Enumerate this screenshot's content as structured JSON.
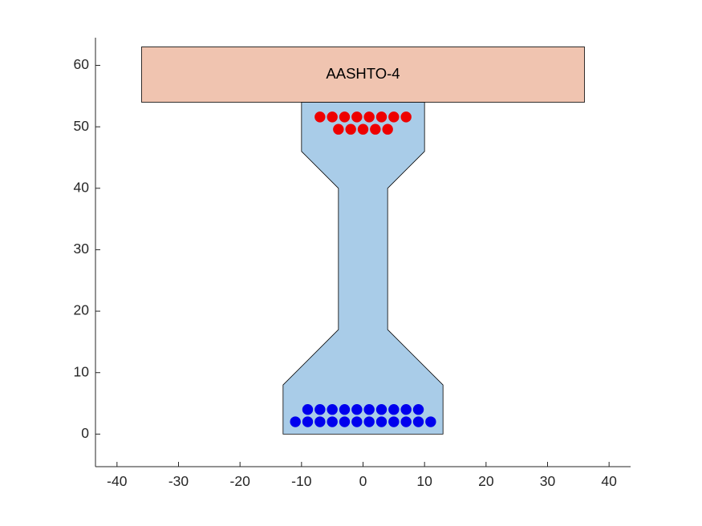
{
  "chart_data": {
    "type": "scatter",
    "title": "",
    "xlabel": "",
    "ylabel": "",
    "xlim": [
      -43.5,
      43.5
    ],
    "ylim": [
      -5.3,
      64.5
    ],
    "x_ticks": [
      -40,
      -30,
      -20,
      -10,
      0,
      10,
      20,
      30,
      40
    ],
    "y_ticks": [
      0,
      10,
      20,
      30,
      40,
      50,
      60
    ],
    "grid": false,
    "slab": {
      "label": "AASHTO-4",
      "x": [
        -36,
        36
      ],
      "y": [
        54,
        63
      ],
      "fill": "#f0c4b0"
    },
    "girder": {
      "fill": "#a9cce8",
      "outline": [
        [
          -13,
          0
        ],
        [
          13,
          0
        ],
        [
          13,
          8
        ],
        [
          4,
          17
        ],
        [
          4,
          40
        ],
        [
          10,
          46
        ],
        [
          10,
          54
        ],
        [
          -10,
          54
        ],
        [
          -10,
          46
        ],
        [
          -4,
          40
        ],
        [
          -4,
          17
        ],
        [
          -13,
          8
        ]
      ]
    },
    "series": [
      {
        "color": "#0000ee",
        "points": [
          [
            -11,
            2
          ],
          [
            -9,
            2
          ],
          [
            -7,
            2
          ],
          [
            -5,
            2
          ],
          [
            -3,
            2
          ],
          [
            -1,
            2
          ],
          [
            1,
            2
          ],
          [
            3,
            2
          ],
          [
            5,
            2
          ],
          [
            7,
            2
          ],
          [
            9,
            2
          ],
          [
            11,
            2
          ],
          [
            -9,
            4
          ],
          [
            -7,
            4
          ],
          [
            -5,
            4
          ],
          [
            -3,
            4
          ],
          [
            -1,
            4
          ],
          [
            1,
            4
          ],
          [
            3,
            4
          ],
          [
            5,
            4
          ],
          [
            7,
            4
          ],
          [
            9,
            4
          ]
        ]
      },
      {
        "color": "#ee0000",
        "points": [
          [
            -7,
            51.6
          ],
          [
            -5,
            51.6
          ],
          [
            -3,
            51.6
          ],
          [
            -1,
            51.6
          ],
          [
            1,
            51.6
          ],
          [
            3,
            51.6
          ],
          [
            5,
            51.6
          ],
          [
            7,
            51.6
          ],
          [
            -4,
            49.6
          ],
          [
            -2,
            49.6
          ],
          [
            0,
            49.6
          ],
          [
            2,
            49.6
          ],
          [
            4,
            49.6
          ]
        ]
      }
    ]
  }
}
